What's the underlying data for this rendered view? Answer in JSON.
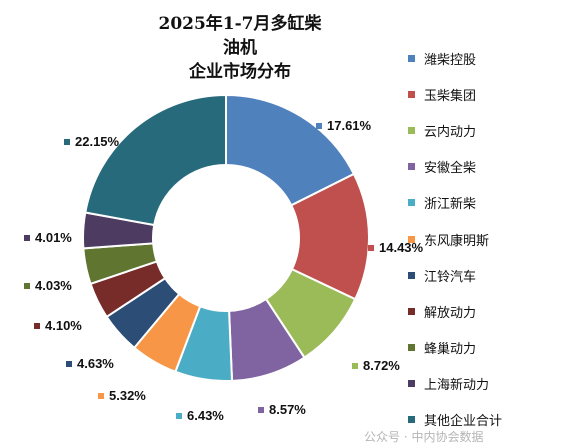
{
  "title_line1": "2025年1-7月多缸柴油机",
  "title_line2": "企业市场分布",
  "watermark": "公众号 · 中内协会数据",
  "chart_data": {
    "type": "pie",
    "variant": "donut",
    "title": "2025年1-7月多缸柴油机企业市场分布",
    "legend_position": "right",
    "series": [
      {
        "name": "潍柴控股",
        "value": 17.61,
        "label": "17.61%",
        "color": "#4f81bd"
      },
      {
        "name": "玉柴集团",
        "value": 14.43,
        "label": "14.43%",
        "color": "#c0504d"
      },
      {
        "name": "云内动力",
        "value": 8.72,
        "label": "8.72%",
        "color": "#9bbb59"
      },
      {
        "name": "安徽全柴",
        "value": 8.57,
        "label": "8.57%",
        "color": "#8064a2"
      },
      {
        "name": "浙江新柴",
        "value": 6.43,
        "label": "6.43%",
        "color": "#4bacc6"
      },
      {
        "name": "东风康明斯",
        "value": 5.32,
        "label": "5.32%",
        "color": "#f79646"
      },
      {
        "name": "江铃汽车",
        "value": 4.63,
        "label": "4.63%",
        "color": "#2c4d75"
      },
      {
        "name": "解放动力",
        "value": 4.1,
        "label": "4.10%",
        "color": "#772c2a"
      },
      {
        "name": "蜂巢动力",
        "value": 4.03,
        "label": "4.03%",
        "color": "#5f7530"
      },
      {
        "name": "上海新动力",
        "value": 4.01,
        "label": "4.01%",
        "color": "#4d3b62"
      },
      {
        "name": "其他企业合计",
        "value": 22.15,
        "label": "22.15%",
        "color": "#276a7c"
      }
    ]
  }
}
